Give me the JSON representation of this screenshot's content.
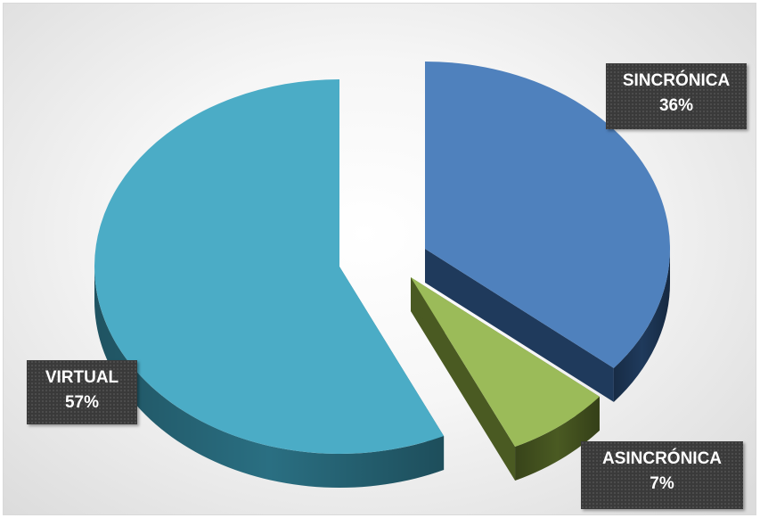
{
  "chart_data": {
    "type": "pie",
    "style": "3d-exploded",
    "title": "",
    "slices": [
      {
        "label": "SINCRÓNICA",
        "value": 36,
        "value_label": "36%",
        "color": "#4f81bd",
        "side_color": "#1f3a5c"
      },
      {
        "label": "ASINCRÓNICA",
        "value": 7,
        "value_label": "7%",
        "color": "#9bbb59",
        "side_color": "#4a5a22"
      },
      {
        "label": "VIRTUAL",
        "value": 57,
        "value_label": "57%",
        "color": "#4bacc6",
        "side_color": "#2a6f82"
      }
    ],
    "legend": "none",
    "data_labels": "callout"
  }
}
